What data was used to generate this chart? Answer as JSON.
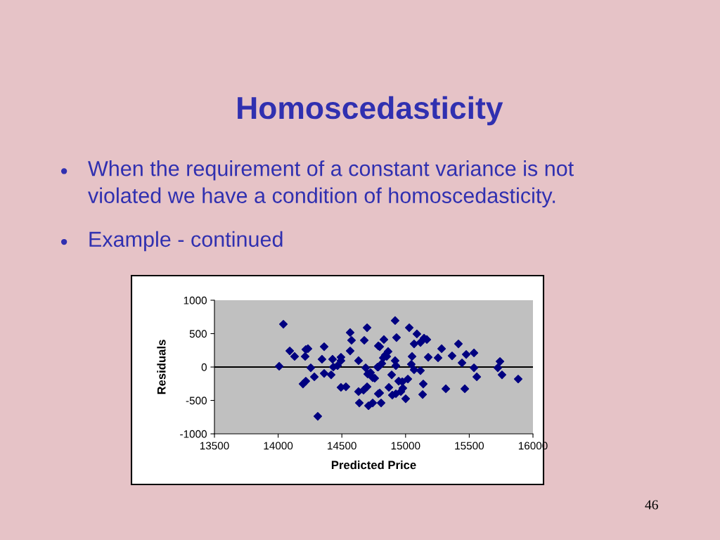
{
  "chart_data": {
    "type": "scatter",
    "title": "Homoscedasticity",
    "annotations": [
      "When the requirement of a constant variance is not\nviolated we have a condition of homoscedasticity.",
      "Example - continued",
      "46"
    ],
    "xlabel": "Predicted Price",
    "ylabel": "Residuals",
    "x": [
      14041,
      14008,
      14091,
      14129,
      14212,
      14217,
      14234,
      14256,
      14284,
      14195,
      14217,
      14311,
      14344,
      14361,
      14361,
      14416,
      14427,
      14433,
      14466,
      14493,
      14493,
      14493,
      14532,
      14565,
      14576,
      14565,
      14631,
      14698,
      14676,
      14687,
      14703,
      14725,
      14742,
      14758,
      14698,
      14670,
      14631,
      14637,
      14709,
      14742,
      14786,
      14786,
      14786,
      14918,
      15029,
      14929,
      14830,
      14797,
      15089,
      15067,
      15117,
      15145,
      15167,
      14863,
      14841,
      14825,
      14852,
      14814,
      14780,
      14918,
      14924,
      15051,
      15045,
      15067,
      15117,
      15178,
      15255,
      15283,
      15365,
      15415,
      15476,
      15537,
      15443,
      15537,
      15559,
      15741,
      15724,
      15757,
      15884,
      15316,
      15465,
      15139,
      15134,
      15018,
      14974,
      14946,
      14891,
      14869,
      14896,
      14924,
      14963,
      14979,
      15001,
      14797,
      14808
    ],
    "series": [
      {
        "color": "#000080",
        "values": [
          642,
          11,
          242,
          158,
          158,
          263,
          274,
          -11,
          -147,
          -253,
          -211,
          -737,
          116,
          305,
          -95,
          -116,
          116,
          0,
          21,
          147,
          95,
          -305,
          -295,
          516,
          400,
          242,
          95,
          589,
          400,
          -11,
          -105,
          -84,
          -158,
          -168,
          -295,
          -347,
          -368,
          -537,
          -579,
          -537,
          316,
          0,
          -400,
          695,
          589,
          442,
          411,
          305,
          495,
          347,
          368,
          432,
          411,
          232,
          179,
          137,
          158,
          53,
          0,
          95,
          21,
          158,
          42,
          -42,
          -53,
          147,
          137,
          274,
          168,
          347,
          189,
          211,
          63,
          -11,
          -147,
          84,
          -11,
          -116,
          -179,
          -326,
          -326,
          -253,
          -411,
          -179,
          -221,
          -211,
          -116,
          -305,
          -421,
          -400,
          -368,
          -316,
          -474,
          -389,
          -537
        ]
      }
    ],
    "ref_lines": [
      {
        "axis": "y",
        "value": 0,
        "color": "#000000"
      }
    ],
    "marker": "diamond",
    "grid": false,
    "legend": false,
    "xlim": [
      13500,
      16000
    ],
    "xticks": [
      13500,
      14000,
      14500,
      15000,
      15500,
      16000
    ],
    "ylim": [
      -1000,
      1000
    ],
    "yticks": [
      -1000,
      -500,
      0,
      500,
      1000
    ]
  }
}
